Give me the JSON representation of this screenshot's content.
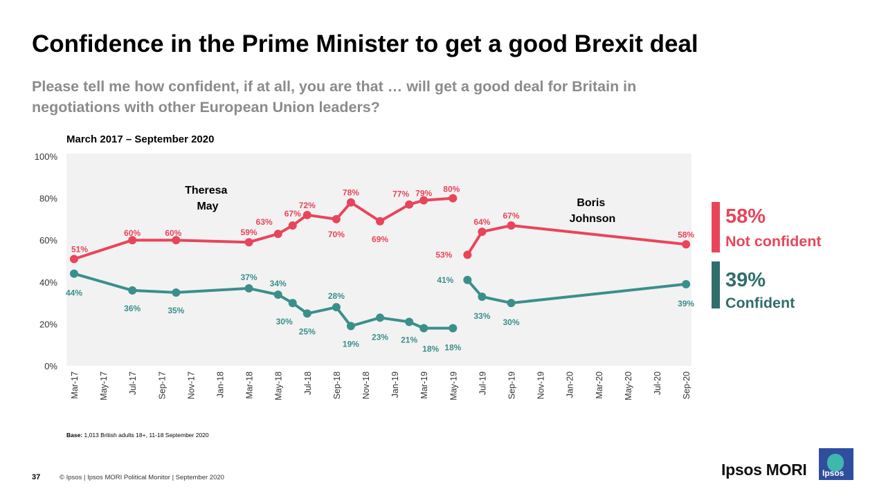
{
  "title": "Confidence in the Prime Minister to get a good Brexit deal",
  "subtitle": "Please tell me how confident, if at all, you are that … will get a good deal for Britain in negotiations with other European Union leaders?",
  "colors": {
    "not_confident": "#e8455a",
    "confident": "#3b8f8b",
    "plot_bg": "#f2f2f2"
  },
  "chart_data": {
    "type": "line",
    "period_label": "March 2017 – September 2020",
    "ylim": [
      0,
      100
    ],
    "yticks": [
      "0%",
      "20%",
      "40%",
      "60%",
      "80%",
      "100%"
    ],
    "x_tick_labels": [
      "Mar-17",
      "May-17",
      "Jul-17",
      "Sep-17",
      "Nov-17",
      "Jan-18",
      "Mar-18",
      "May-18",
      "Jul-18",
      "Sep-18",
      "Nov-18",
      "Jan-19",
      "Mar-19",
      "May-19",
      "Jul-19",
      "Sep-19",
      "Nov-19",
      "Jan-20",
      "Mar-20",
      "May-20",
      "Jul-20",
      "Sep-20"
    ],
    "annotations": [
      "Theresa May",
      "Boris Johnson"
    ],
    "series": [
      {
        "name": "Not confident",
        "segments": [
          [
            {
              "m": 0,
              "v": 51
            },
            {
              "m": 4,
              "v": 60
            },
            {
              "m": 7,
              "v": 60
            },
            {
              "m": 12,
              "v": 59
            },
            {
              "m": 14,
              "v": 63
            },
            {
              "m": 15,
              "v": 67
            },
            {
              "m": 16,
              "v": 72
            },
            {
              "m": 18,
              "v": 70
            },
            {
              "m": 19,
              "v": 78
            },
            {
              "m": 21,
              "v": 69
            },
            {
              "m": 23,
              "v": 77
            },
            {
              "m": 24,
              "v": 79
            },
            {
              "m": 26,
              "v": 80
            }
          ],
          [
            {
              "m": 27,
              "v": 53
            },
            {
              "m": 28,
              "v": 64
            },
            {
              "m": 30,
              "v": 67
            },
            {
              "m": 42,
              "v": 58
            }
          ]
        ]
      },
      {
        "name": "Confident",
        "segments": [
          [
            {
              "m": 0,
              "v": 44
            },
            {
              "m": 4,
              "v": 36
            },
            {
              "m": 7,
              "v": 35
            },
            {
              "m": 12,
              "v": 37
            },
            {
              "m": 14,
              "v": 34
            },
            {
              "m": 15,
              "v": 30
            },
            {
              "m": 16,
              "v": 25
            },
            {
              "m": 18,
              "v": 28
            },
            {
              "m": 19,
              "v": 19
            },
            {
              "m": 21,
              "v": 23
            },
            {
              "m": 23,
              "v": 21
            },
            {
              "m": 24,
              "v": 18
            },
            {
              "m": 26,
              "v": 18
            }
          ],
          [
            {
              "m": 27,
              "v": 41
            },
            {
              "m": 28,
              "v": 33
            },
            {
              "m": 30,
              "v": 30
            },
            {
              "m": 42,
              "v": 39
            }
          ]
        ]
      }
    ]
  },
  "side_labels": {
    "not_confident": {
      "pct": "58%",
      "label": "Not confident"
    },
    "confident": {
      "pct": "39%",
      "label": "Confident"
    }
  },
  "footer": {
    "base_label": "Base:",
    "base_text": " 1,013 British adults 18+, 11-18 September 2020",
    "page_number": "37",
    "copyright": "© Ipsos | Ipsos MORI Political Monitor | September 2020",
    "logo_text": "Ipsos MORI",
    "logo_box_text": "Ipsos"
  }
}
